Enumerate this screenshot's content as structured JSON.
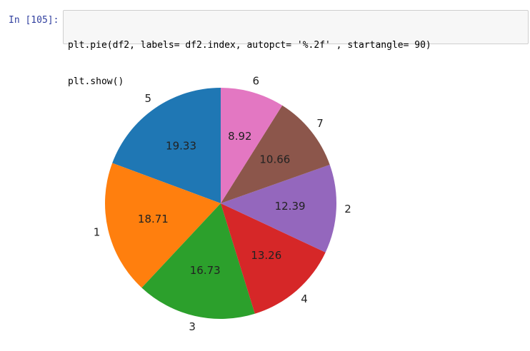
{
  "cell": {
    "prompt": "In [105]:",
    "code": [
      "plt.pie(df2, labels= df2.index, autopct= '%.2f' , startangle= 90)",
      "plt.show()"
    ]
  },
  "chart_data": {
    "type": "pie",
    "categories": [
      "5",
      "1",
      "3",
      "4",
      "2",
      "7",
      "6"
    ],
    "values": [
      19.33,
      18.71,
      16.73,
      13.26,
      12.39,
      10.66,
      8.92
    ],
    "colors": [
      "#1f77b4",
      "#ff7f0e",
      "#2ca02c",
      "#d62728",
      "#9467bd",
      "#8c564b",
      "#e377c2"
    ],
    "startangle": 90,
    "counterclock": true
  }
}
